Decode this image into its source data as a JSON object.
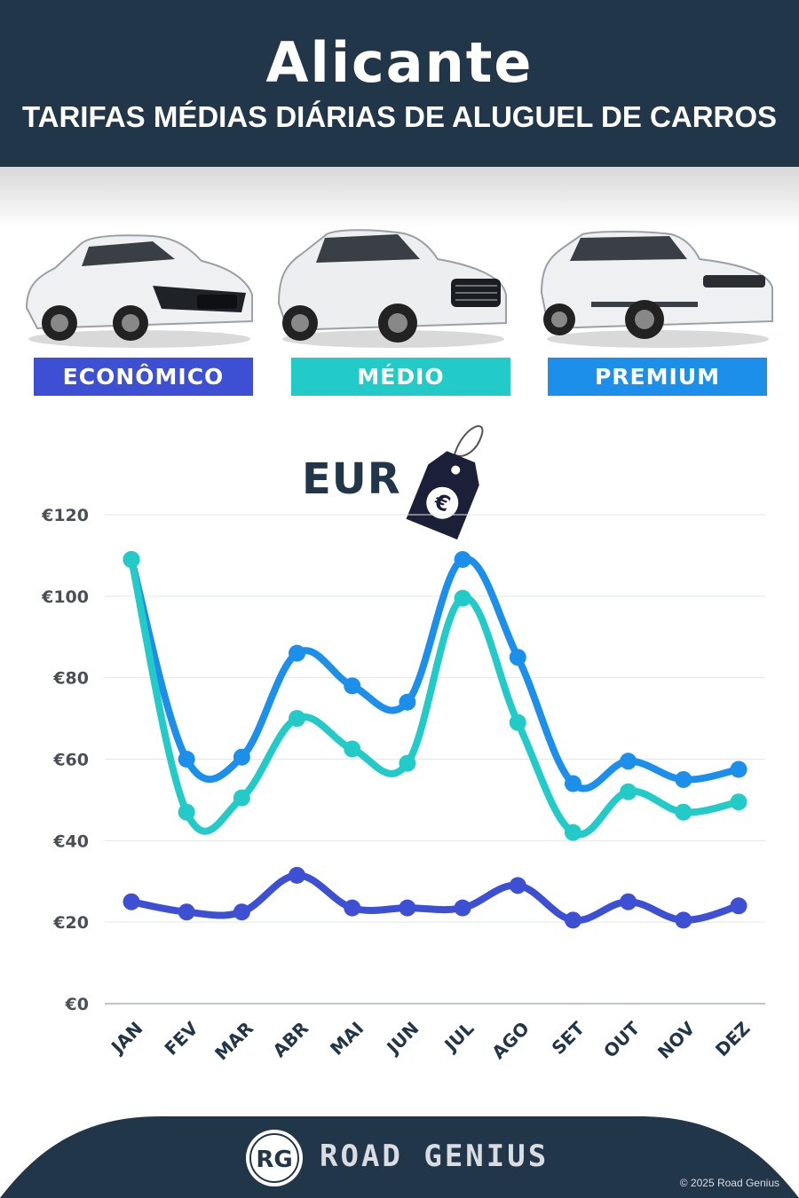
{
  "header": {
    "title": "Alicante",
    "subtitle": "TARIFAS MÉDIAS DIÁRIAS DE ALUGUEL DE CARROS"
  },
  "categories": [
    {
      "label": "ECONÔMICO",
      "color": "#3d50d4",
      "icon": "hatchback-car-image"
    },
    {
      "label": "MÉDIO",
      "color": "#22cbc7",
      "icon": "suv-car-image"
    },
    {
      "label": "PREMIUM",
      "color": "#1b8fea",
      "icon": "premium-suv-car-image"
    }
  ],
  "currency_label": "EUR",
  "currency_icon": "euro-price-tag-icon",
  "chart_data": {
    "type": "line",
    "categories": [
      "JAN",
      "FEV",
      "MAR",
      "ABR",
      "MAI",
      "JUN",
      "JUL",
      "AGO",
      "SET",
      "OUT",
      "NOV",
      "DEZ"
    ],
    "series": [
      {
        "name": "PREMIUM",
        "color": "#1b8fea",
        "values": [
          109,
          60,
          60.5,
          86,
          78,
          74,
          109,
          85,
          54,
          59.5,
          55,
          57.5
        ]
      },
      {
        "name": "MÉDIO",
        "color": "#22cbc7",
        "values": [
          109,
          47,
          50.5,
          70,
          62.5,
          59,
          99.5,
          69,
          42,
          52,
          47,
          49.5
        ]
      },
      {
        "name": "ECONÔMICO",
        "color": "#3d50d4",
        "values": [
          25,
          22.5,
          22.5,
          31.5,
          23.5,
          23.5,
          23.5,
          29,
          20.5,
          25,
          20.5,
          24
        ]
      }
    ],
    "yticks": [
      "€0",
      "€20",
      "€40",
      "€60",
      "€80",
      "€100",
      "€120"
    ],
    "ylim": [
      0,
      120
    ],
    "grid": true
  },
  "footer": {
    "logo_text": "RG",
    "brand": "ROAD GENIUS",
    "copyright": "© 2025 Road Genius",
    "background": "#22364a"
  }
}
